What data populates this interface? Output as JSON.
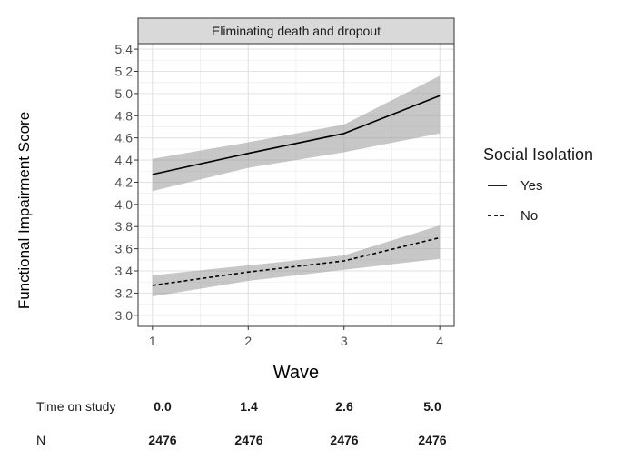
{
  "chart_data": {
    "type": "line",
    "title": "Eliminating death and dropout",
    "xlabel": "Wave",
    "ylabel": "Functional Impairment Score",
    "x": [
      1,
      2,
      3,
      4
    ],
    "x_tick_labels": [
      "1",
      "2",
      "3",
      "4"
    ],
    "ylim": [
      2.9,
      5.45
    ],
    "y_ticks": [
      3.0,
      3.2,
      3.4,
      3.6,
      3.8,
      4.0,
      4.2,
      4.4,
      4.6,
      4.8,
      5.0,
      5.2,
      5.4
    ],
    "y_tick_labels": [
      "3.0",
      "3.2",
      "3.4",
      "3.6",
      "3.8",
      "4.0",
      "4.2",
      "4.4",
      "4.6",
      "4.8",
      "5.0",
      "5.2",
      "5.4"
    ],
    "grid": true,
    "legend": {
      "title": "Social Isolation",
      "placement": "right"
    },
    "series": [
      {
        "name": "Yes",
        "line_style": "solid",
        "values": [
          4.27,
          4.46,
          4.64,
          4.98
        ],
        "ci_lower": [
          4.12,
          4.33,
          4.47,
          4.64
        ],
        "ci_upper": [
          4.41,
          4.56,
          4.72,
          5.16
        ]
      },
      {
        "name": "No",
        "line_style": "dashed",
        "values": [
          3.27,
          3.39,
          3.49,
          3.7
        ],
        "ci_lower": [
          3.17,
          3.31,
          3.41,
          3.51
        ],
        "ci_upper": [
          3.36,
          3.45,
          3.54,
          3.81
        ]
      }
    ],
    "band_color": "#999999",
    "line_color": "#000000",
    "strip_fill": "#d9d9d9"
  },
  "risk_table": {
    "rows": [
      {
        "label": "Time on study",
        "values": [
          "0.0",
          "1.4",
          "2.6",
          "5.0"
        ]
      },
      {
        "label": "N",
        "values": [
          "2476",
          "2476",
          "2476",
          "2476"
        ]
      }
    ]
  }
}
